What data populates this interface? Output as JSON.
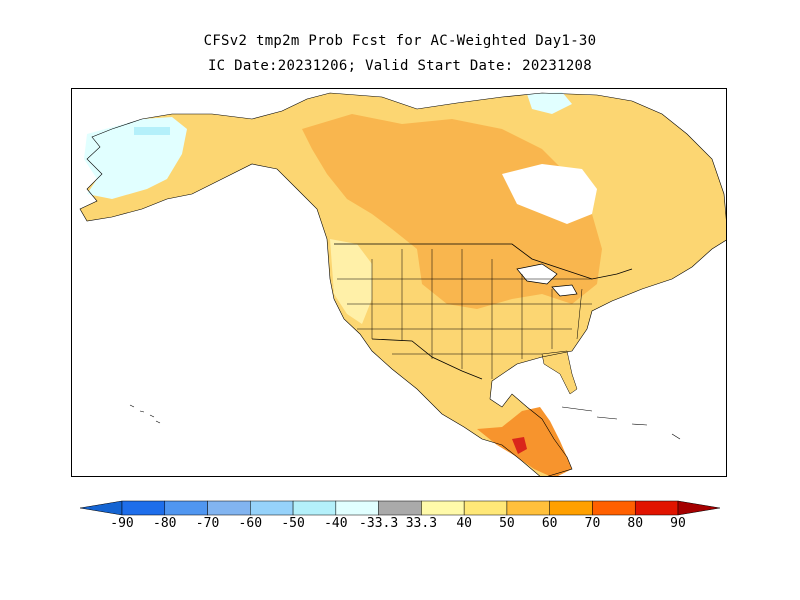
{
  "title": {
    "line1": "CFSv2 tmp2m Prob Fcst for AC-Weighted Day1-30",
    "line2": "IC Date:20231206; Valid Start Date: 20231208"
  },
  "legend": {
    "bins": [
      {
        "color": "#1464d2"
      },
      {
        "color": "#1e6eeb"
      },
      {
        "color": "#5096f0"
      },
      {
        "color": "#82b4f0"
      },
      {
        "color": "#96d2fa"
      },
      {
        "color": "#b4f0fa"
      },
      {
        "color": "#e1ffff"
      },
      {
        "color": "#aaaaaa"
      },
      {
        "color": "#fffaaa"
      },
      {
        "color": "#ffe878"
      },
      {
        "color": "#ffc03c"
      },
      {
        "color": "#ffa000"
      },
      {
        "color": "#ff6000"
      },
      {
        "color": "#e11400"
      },
      {
        "color": "#a50000"
      }
    ],
    "tick_labels": [
      "-90",
      "-80",
      "-70",
      "-60",
      "-50",
      "-40",
      "-33.3",
      "33.3",
      "40",
      "50",
      "60",
      "70",
      "80",
      "90"
    ]
  },
  "map_colors": {
    "ocean": "#ffffff",
    "above_33_40": "#fff0a8",
    "above_40_50": "#fcd672",
    "above_50_60": "#f9b64e",
    "above_60_70": "#f7942d",
    "above_70_80": "#f2661f",
    "above_80_90": "#d9261b",
    "below_33_40": "#e1ffff",
    "below_40_50": "#b4f0fa",
    "borders": "#000000"
  }
}
